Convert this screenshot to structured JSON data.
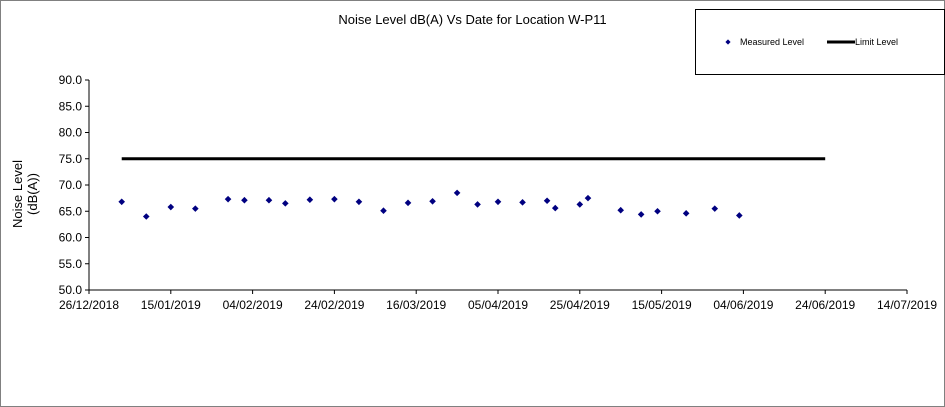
{
  "chart_data": {
    "type": "scatter",
    "title": "Noise Level dB(A) Vs Date for Location W-P11",
    "xlabel": "",
    "ylabel_lines": [
      "Noise Level",
      "(dB(A))"
    ],
    "ylim": [
      50,
      90
    ],
    "yticks": [
      "50.0",
      "55.0",
      "60.0",
      "65.0",
      "70.0",
      "75.0",
      "80.0",
      "85.0",
      "90.0"
    ],
    "xlim": [
      "2018-12-26",
      "2019-07-14"
    ],
    "xticks": [
      "26/12/2018",
      "15/01/2019",
      "04/02/2019",
      "24/02/2019",
      "16/03/2019",
      "05/04/2019",
      "25/04/2019",
      "15/05/2019",
      "04/06/2019",
      "24/06/2019",
      "14/07/2019"
    ],
    "grid": false,
    "legend_position": "top-right",
    "series": [
      {
        "name": "Measured Level",
        "marker": "diamond",
        "color": "#000080",
        "points": [
          {
            "x": "2019-01-03",
            "y": 66.8
          },
          {
            "x": "2019-01-09",
            "y": 64.0
          },
          {
            "x": "2019-01-15",
            "y": 65.8
          },
          {
            "x": "2019-01-21",
            "y": 65.5
          },
          {
            "x": "2019-01-29",
            "y": 67.3
          },
          {
            "x": "2019-02-02",
            "y": 67.1
          },
          {
            "x": "2019-02-08",
            "y": 67.1
          },
          {
            "x": "2019-02-12",
            "y": 66.5
          },
          {
            "x": "2019-02-18",
            "y": 67.2
          },
          {
            "x": "2019-02-24",
            "y": 67.3
          },
          {
            "x": "2019-03-02",
            "y": 66.8
          },
          {
            "x": "2019-03-08",
            "y": 65.1
          },
          {
            "x": "2019-03-14",
            "y": 66.6
          },
          {
            "x": "2019-03-20",
            "y": 66.9
          },
          {
            "x": "2019-03-26",
            "y": 68.5
          },
          {
            "x": "2019-03-31",
            "y": 66.3
          },
          {
            "x": "2019-04-05",
            "y": 66.8
          },
          {
            "x": "2019-04-11",
            "y": 66.7
          },
          {
            "x": "2019-04-17",
            "y": 67.0
          },
          {
            "x": "2019-04-19",
            "y": 65.6
          },
          {
            "x": "2019-04-25",
            "y": 66.3
          },
          {
            "x": "2019-04-27",
            "y": 67.5
          },
          {
            "x": "2019-05-05",
            "y": 65.2
          },
          {
            "x": "2019-05-10",
            "y": 64.4
          },
          {
            "x": "2019-05-14",
            "y": 65.0
          },
          {
            "x": "2019-05-21",
            "y": 64.6
          },
          {
            "x": "2019-05-28",
            "y": 65.5
          },
          {
            "x": "2019-06-03",
            "y": 64.2
          }
        ]
      },
      {
        "name": "Limit Level",
        "type": "line",
        "color": "#000000",
        "points": [
          {
            "x": "2019-01-03",
            "y": 75.0
          },
          {
            "x": "2019-06-24",
            "y": 75.0
          }
        ]
      }
    ]
  }
}
